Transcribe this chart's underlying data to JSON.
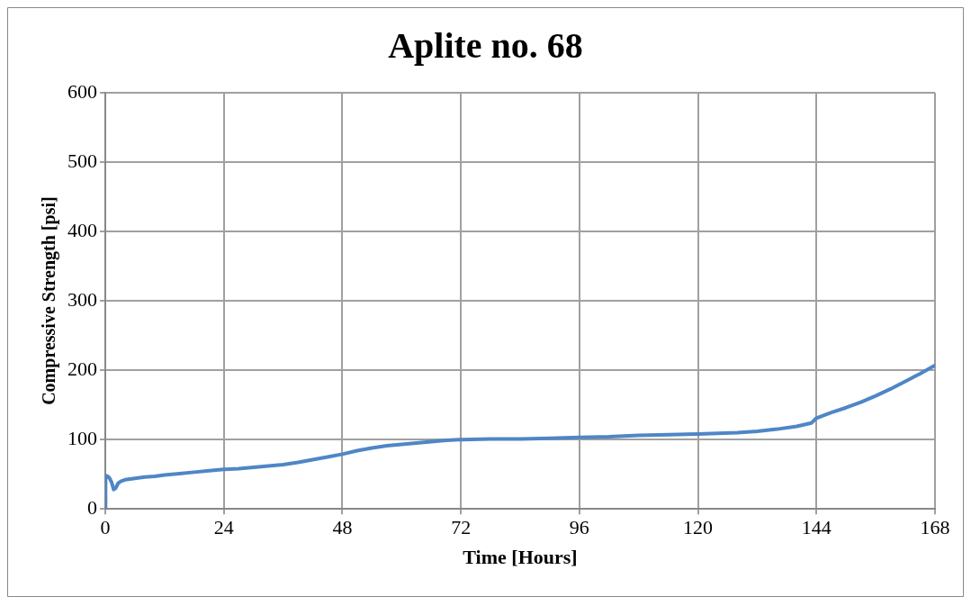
{
  "chart_data": {
    "type": "line",
    "title": "Aplite no. 68",
    "xlabel": "Time [Hours]",
    "ylabel": "Compressive Strength [psi]",
    "series": [
      {
        "color": "#4f86c6",
        "x": [
          0,
          0.05,
          0.2,
          0.5,
          0.9,
          1.3,
          1.7,
          2.1,
          2.6,
          3.2,
          4,
          6,
          8,
          10,
          12,
          15,
          18,
          21,
          24,
          27,
          30,
          33,
          36,
          39,
          42,
          45,
          48,
          51,
          54,
          57,
          60,
          63,
          66,
          69,
          72,
          78,
          84,
          90,
          96,
          102,
          108,
          114,
          120,
          124,
          128,
          132,
          136,
          140,
          143,
          144,
          147,
          150,
          153,
          156,
          159,
          162,
          165,
          168
        ],
        "values": [
          0,
          46,
          48,
          47,
          44,
          38,
          28,
          30,
          37,
          40,
          42,
          44,
          46,
          47,
          49,
          51,
          53,
          55,
          57,
          58,
          60,
          62,
          64,
          67,
          71,
          75,
          79,
          84,
          88,
          91,
          93,
          95,
          97,
          99,
          100,
          101,
          101,
          102,
          103,
          104,
          106,
          107,
          108,
          109,
          110,
          112,
          115,
          119,
          124,
          131,
          139,
          146,
          154,
          163,
          173,
          184,
          195,
          207
        ]
      }
    ],
    "xlim": [
      0,
      168
    ],
    "xticks": [
      0,
      24,
      48,
      72,
      96,
      120,
      144,
      168
    ],
    "ylim": [
      0,
      600
    ],
    "yticks": [
      0,
      100,
      200,
      300,
      400,
      500,
      600
    ],
    "grid": true,
    "legend": false,
    "marker": "none",
    "line_style": "solid"
  }
}
